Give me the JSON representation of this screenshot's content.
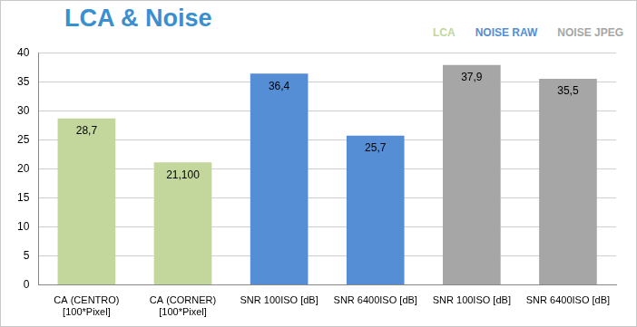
{
  "chart_data": {
    "type": "bar",
    "title": "LCA & Noise",
    "categories": [
      [
        "CA (CENTRO)",
        "[100*Pixel]"
      ],
      [
        "CA (CORNER)",
        "[100*Pixel]"
      ],
      "SNR 100ISO [dB]",
      "SNR 6400ISO [dB]",
      "SNR 100ISO [dB]",
      "SNR 6400ISO [dB]"
    ],
    "series": [
      {
        "name": "LCA",
        "color": "#c3d69b",
        "values": [
          28.7,
          21.1,
          null,
          null,
          null,
          null
        ],
        "value_labels": [
          "28,7",
          "21,100",
          null,
          null,
          null,
          null
        ]
      },
      {
        "name": "NOISE RAW",
        "color": "#558ed5",
        "values": [
          null,
          null,
          36.4,
          25.7,
          null,
          null
        ],
        "value_labels": [
          null,
          null,
          "36,4",
          "25,7",
          null,
          null
        ]
      },
      {
        "name": "NOISE JPEG",
        "color": "#a6a6a6",
        "values": [
          null,
          null,
          null,
          null,
          37.9,
          35.5
        ],
        "value_labels": [
          null,
          null,
          null,
          null,
          "37,9",
          "35,5"
        ]
      }
    ],
    "ylim": [
      0,
      40
    ],
    "yticks": [
      0,
      5,
      10,
      15,
      20,
      25,
      30,
      35,
      40
    ],
    "grid": true,
    "legend": "top right",
    "data_labels": true
  }
}
